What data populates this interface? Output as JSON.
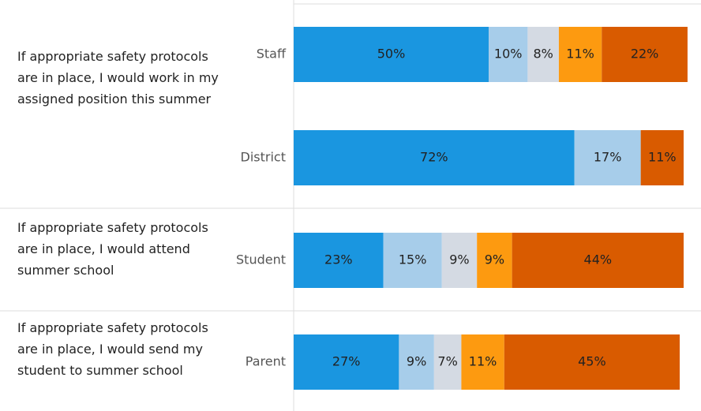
{
  "chart_data": {
    "type": "bar",
    "orientation": "horizontal",
    "stacked": true,
    "xlim": [
      0,
      100
    ],
    "row_groups": [
      "If appropriate safety protocols are in place, I would work in my assigned position this summer",
      "If appropriate safety protocols are in place, I would attend summer school",
      "If appropriate safety protocols are in place, I would send my student to summer school"
    ],
    "categories": [
      "Staff",
      "District",
      "Student",
      "Parent"
    ],
    "series": [
      {
        "color": "#1a96e0",
        "values": [
          50,
          72,
          23,
          27
        ],
        "value_labels": [
          "50%",
          "72%",
          "23%",
          "27%"
        ]
      },
      {
        "color": "#a7cdea",
        "values": [
          10,
          17,
          15,
          9
        ],
        "value_labels": [
          "10%",
          "17%",
          "15%",
          "9%"
        ]
      },
      {
        "color": "#d4dae3",
        "values": [
          8,
          null,
          9,
          7
        ],
        "value_labels": [
          "8%",
          null,
          "9%",
          "7%"
        ]
      },
      {
        "color": "#fd9a10",
        "values": [
          11,
          null,
          9,
          11
        ],
        "value_labels": [
          "11%",
          null,
          "9%",
          "11%"
        ]
      },
      {
        "color": "#d95b00",
        "values": [
          22,
          11,
          44,
          45
        ],
        "value_labels": [
          "22%",
          "11%",
          "44%",
          "45%"
        ]
      }
    ]
  }
}
